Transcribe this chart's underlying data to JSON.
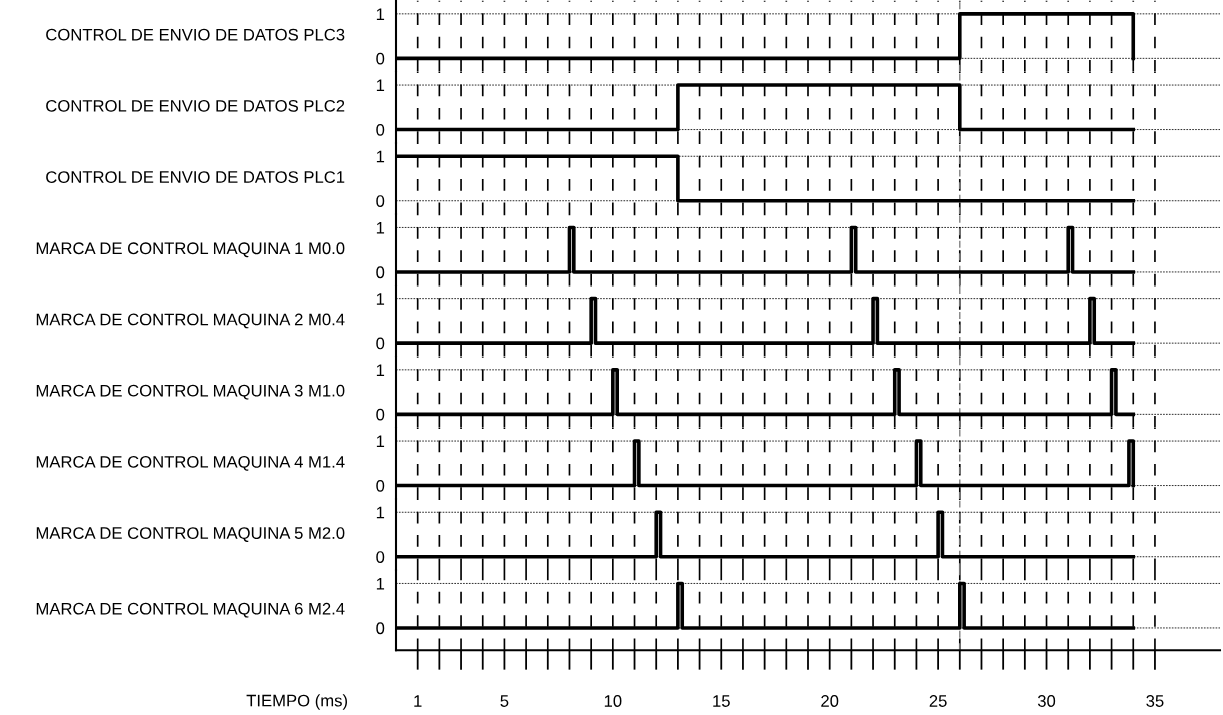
{
  "chart_data": [
    {
      "type": "step",
      "ylabel": "CONTROL DE ENVIO DE DATOS PLC3",
      "x": [
        0,
        26,
        34
      ],
      "values": [
        0,
        1,
        0
      ],
      "color": "#000000",
      "xlim": [
        0,
        38
      ],
      "ylim": [
        -0.3,
        1.3
      ],
      "yticks": [
        0,
        1
      ],
      "grid": true,
      "tick_labels": "y",
      "ref_lines": [
        {
          "axis": "x",
          "value": 26,
          "color": "#808080",
          "line_style": "dashed"
        }
      ]
    },
    {
      "type": "step",
      "ylabel": "CONTROL DE ENVIO DE DATOS PLC2",
      "x": [
        0,
        13,
        26,
        34
      ],
      "values": [
        0,
        1,
        0,
        0
      ],
      "color": "#000000",
      "xlim": [
        0,
        38
      ],
      "ylim": [
        -0.3,
        1.3
      ],
      "yticks": [
        0,
        1
      ],
      "grid": true,
      "tick_labels": "y",
      "ref_lines": [
        {
          "axis": "x",
          "value": 26,
          "color": "#808080",
          "line_style": "dashed"
        }
      ]
    },
    {
      "type": "step",
      "ylabel": "CONTROL DE ENVIO DE DATOS PLC1",
      "x": [
        0,
        13,
        34
      ],
      "values": [
        1,
        0,
        0
      ],
      "color": "#000000",
      "xlim": [
        0,
        38
      ],
      "ylim": [
        -0.3,
        1.3
      ],
      "yticks": [
        0,
        1
      ],
      "grid": true,
      "tick_labels": "y",
      "ref_lines": [
        {
          "axis": "x",
          "value": 26,
          "color": "#808080",
          "line_style": "dashed"
        }
      ]
    },
    {
      "type": "step",
      "ylabel": "MARCA DE CONTROL MAQUINA 1 M0.0",
      "x": [
        0,
        8,
        8.2,
        21,
        21.2,
        31,
        31.2,
        34
      ],
      "values": [
        0,
        1,
        0,
        1,
        0,
        1,
        0,
        0
      ],
      "color": "#000000",
      "xlim": [
        0,
        38
      ],
      "ylim": [
        -0.3,
        1.3
      ],
      "yticks": [
        0,
        1
      ],
      "grid": true,
      "tick_labels": "y",
      "ref_lines": [
        {
          "axis": "x",
          "value": 26,
          "color": "#808080",
          "line_style": "dashed"
        }
      ]
    },
    {
      "type": "step",
      "ylabel": "MARCA DE CONTROL MAQUINA 2 M0.4",
      "x": [
        0,
        9,
        9.2,
        22,
        22.2,
        32,
        32.2,
        34
      ],
      "values": [
        0,
        1,
        0,
        1,
        0,
        1,
        0,
        0
      ],
      "color": "#000000",
      "xlim": [
        0,
        38
      ],
      "ylim": [
        -0.3,
        1.3
      ],
      "yticks": [
        0,
        1
      ],
      "grid": true,
      "tick_labels": "y",
      "ref_lines": [
        {
          "axis": "x",
          "value": 26,
          "color": "#808080",
          "line_style": "dashed"
        }
      ]
    },
    {
      "type": "step",
      "ylabel": "MARCA DE CONTROL MAQUINA 3 M1.0",
      "x": [
        0,
        10,
        10.2,
        23,
        23.2,
        33,
        33.2,
        34
      ],
      "values": [
        0,
        1,
        0,
        1,
        0,
        1,
        0,
        0
      ],
      "color": "#000000",
      "xlim": [
        0,
        38
      ],
      "ylim": [
        -0.3,
        1.3
      ],
      "yticks": [
        0,
        1
      ],
      "grid": true,
      "tick_labels": "y",
      "ref_lines": [
        {
          "axis": "x",
          "value": 26,
          "color": "#808080",
          "line_style": "dashed"
        }
      ]
    },
    {
      "type": "step",
      "ylabel": "MARCA DE CONTROL MAQUINA 4 M1.4",
      "x": [
        0,
        11,
        11.2,
        24,
        24.2,
        33.8,
        34
      ],
      "values": [
        0,
        1,
        0,
        1,
        0,
        1,
        0
      ],
      "color": "#000000",
      "xlim": [
        0,
        38
      ],
      "ylim": [
        -0.3,
        1.3
      ],
      "yticks": [
        0,
        1
      ],
      "grid": true,
      "tick_labels": "y",
      "ref_lines": [
        {
          "axis": "x",
          "value": 26,
          "color": "#808080",
          "line_style": "dashed"
        }
      ]
    },
    {
      "type": "step",
      "ylabel": "MARCA DE CONTROL MAQUINA 5 M2.0",
      "x": [
        0,
        12,
        12.2,
        25,
        25.2,
        34
      ],
      "values": [
        0,
        1,
        0,
        1,
        0,
        0
      ],
      "color": "#000000",
      "xlim": [
        0,
        38
      ],
      "ylim": [
        -0.3,
        1.3
      ],
      "yticks": [
        0,
        1
      ],
      "grid": true,
      "tick_labels": "y",
      "ref_lines": [
        {
          "axis": "x",
          "value": 26,
          "color": "#808080",
          "line_style": "dashed"
        }
      ]
    },
    {
      "type": "step",
      "ylabel": "MARCA DE CONTROL MAQUINA 6 M2.4",
      "xlabel": "TIEMPO (ms)",
      "x": [
        0,
        13,
        13.2,
        26,
        26.2,
        34
      ],
      "values": [
        0,
        1,
        0,
        1,
        0,
        0
      ],
      "color": "#000000",
      "xlim": [
        0,
        38
      ],
      "ylim": [
        -0.5,
        1.3
      ],
      "yticks": [
        0,
        1
      ],
      "xticks": [
        {
          "value": 1,
          "label": "1"
        },
        {
          "value": 2,
          "label": null
        },
        {
          "value": 3,
          "label": null
        },
        {
          "value": 4,
          "label": null
        },
        {
          "value": 5,
          "label": "5"
        },
        {
          "value": 6,
          "label": null
        },
        {
          "value": 7,
          "label": null
        },
        {
          "value": 8,
          "label": null
        },
        {
          "value": 9,
          "label": null
        },
        {
          "value": 10,
          "label": "10"
        },
        {
          "value": 11,
          "label": null
        },
        {
          "value": 12,
          "label": null
        },
        {
          "value": 13,
          "label": null
        },
        {
          "value": 14,
          "label": null
        },
        {
          "value": 15,
          "label": "15"
        },
        {
          "value": 16,
          "label": null
        },
        {
          "value": 17,
          "label": null
        },
        {
          "value": 18,
          "label": null
        },
        {
          "value": 19,
          "label": null
        },
        {
          "value": 20,
          "label": "20"
        },
        {
          "value": 21,
          "label": null
        },
        {
          "value": 22,
          "label": null
        },
        {
          "value": 23,
          "label": null
        },
        {
          "value": 24,
          "label": null
        },
        {
          "value": 25,
          "label": "25"
        },
        {
          "value": 26,
          "label": null
        },
        {
          "value": 27,
          "label": null
        },
        {
          "value": 28,
          "label": null
        },
        {
          "value": 29,
          "label": null
        },
        {
          "value": 30,
          "label": "30"
        },
        {
          "value": 31,
          "label": null
        },
        {
          "value": 32,
          "label": null
        },
        {
          "value": 33,
          "label": null
        },
        {
          "value": 34,
          "label": null
        },
        {
          "value": 35,
          "label": "35"
        }
      ],
      "grid": true,
      "ref_lines": [
        {
          "axis": "x",
          "value": 26,
          "color": "#808080",
          "line_style": "dashed"
        }
      ]
    }
  ]
}
